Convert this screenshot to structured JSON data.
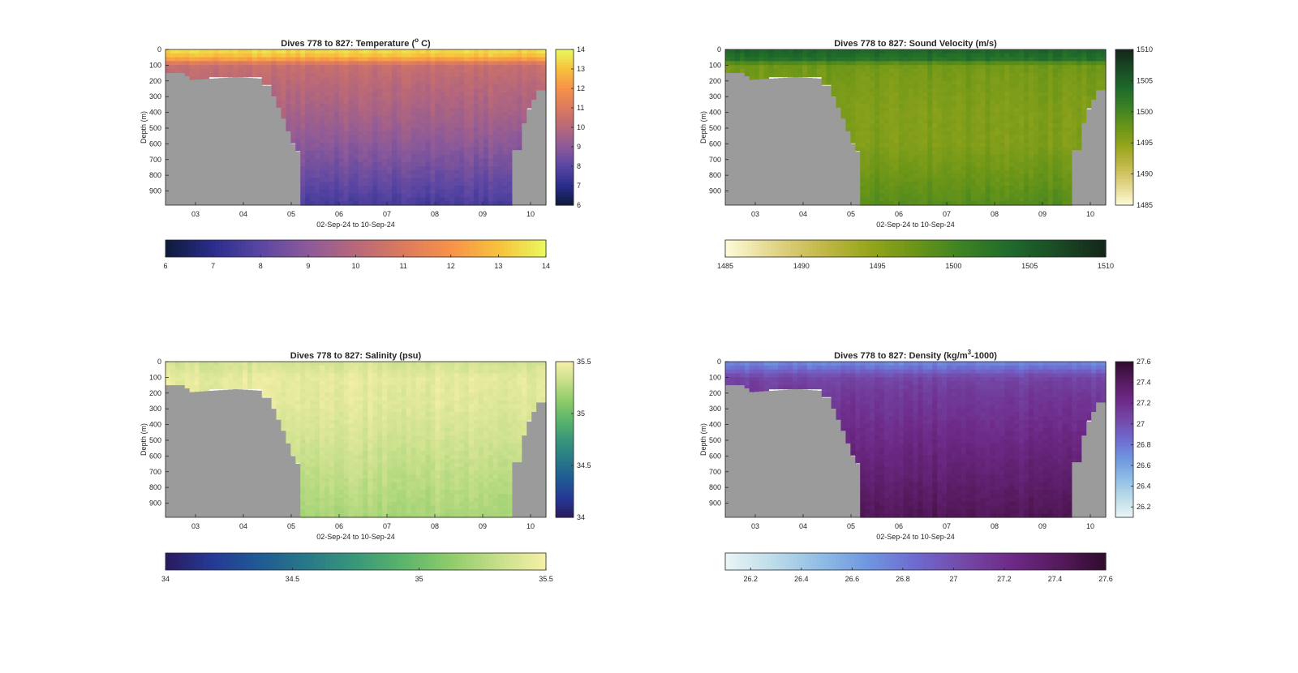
{
  "figure": {
    "background": "#ffffff",
    "land_color": "#9b9b9b"
  },
  "chart_data": [
    {
      "id": "temperature",
      "type": "heatmap",
      "title_main": "Dives 778 to 827: Temperature (",
      "title_sup": "o",
      "title_end": " C)",
      "xlabel": "02-Sep-24 to 10-Sep-24",
      "ylabel": "Depth (m)",
      "x_ticks": [
        "03",
        "04",
        "05",
        "06",
        "07",
        "08",
        "09",
        "10"
      ],
      "x_range_days": [
        "02-Sep-24 09:00",
        "10-Sep-24 07:00"
      ],
      "y_ticks": [
        "0",
        "100",
        "200",
        "300",
        "400",
        "500",
        "600",
        "700",
        "800",
        "900"
      ],
      "ylim": [
        0,
        990
      ],
      "colorbar": {
        "min": 6,
        "max": 14,
        "ticks": [
          "6",
          "7",
          "8",
          "9",
          "10",
          "11",
          "12",
          "13",
          "14"
        ],
        "h_ticks": [
          "6",
          "7",
          "8",
          "9",
          "10",
          "11",
          "12",
          "13",
          "14"
        ],
        "colors": [
          "#0d1a3a",
          "#2a2d8c",
          "#5a46a3",
          "#8d5a99",
          "#b86879",
          "#dc7a5e",
          "#f7924a",
          "#f7c13c",
          "#e9f95e"
        ]
      },
      "profile": [
        [
          0,
          13.6
        ],
        [
          50,
          12.8
        ],
        [
          100,
          10.4
        ],
        [
          200,
          10.1
        ],
        [
          400,
          9.6
        ],
        [
          600,
          9.0
        ],
        [
          800,
          8.3
        ],
        [
          990,
          7.6
        ]
      ]
    },
    {
      "id": "sound_velocity",
      "type": "heatmap",
      "title_main": "Dives 778 to 827: Sound Velocity (m/s)",
      "title_sup": "",
      "title_end": "",
      "xlabel": "02-Sep-24 to 10-Sep-24",
      "ylabel": "Depth (m)",
      "x_ticks": [
        "03",
        "04",
        "05",
        "06",
        "07",
        "08",
        "09",
        "10"
      ],
      "x_range_days": [
        "02-Sep-24 09:00",
        "10-Sep-24 07:00"
      ],
      "y_ticks": [
        "0",
        "100",
        "200",
        "300",
        "400",
        "500",
        "600",
        "700",
        "800",
        "900"
      ],
      "ylim": [
        0,
        990
      ],
      "colorbar": {
        "min": 1485,
        "max": 1510,
        "ticks": [
          "1485",
          "1490",
          "1495",
          "1500",
          "1505",
          "1510"
        ],
        "h_ticks": [
          "1485",
          "1490",
          "1495",
          "1500",
          "1505",
          "1510"
        ],
        "colors": [
          "#fdfbd9",
          "#e3d68a",
          "#c3b94a",
          "#97a61c",
          "#6a9518",
          "#3c8223",
          "#1f6a2c",
          "#1a4a24",
          "#13261a"
        ]
      },
      "profile": [
        [
          0,
          1504.5
        ],
        [
          60,
          1503
        ],
        [
          100,
          1497
        ],
        [
          200,
          1496.5
        ],
        [
          400,
          1496
        ],
        [
          600,
          1496
        ],
        [
          800,
          1497.5
        ],
        [
          990,
          1499
        ]
      ]
    },
    {
      "id": "salinity",
      "type": "heatmap",
      "title_main": "Dives 778 to 827: Salinity (psu)",
      "title_sup": "",
      "title_end": "",
      "xlabel": "02-Sep-24 to 10-Sep-24",
      "ylabel": "Depth (m)",
      "x_ticks": [
        "03",
        "04",
        "05",
        "06",
        "07",
        "08",
        "09",
        "10"
      ],
      "x_range_days": [
        "02-Sep-24 09:00",
        "10-Sep-24 07:00"
      ],
      "y_ticks": [
        "0",
        "100",
        "200",
        "300",
        "400",
        "500",
        "600",
        "700",
        "800",
        "900"
      ],
      "ylim": [
        0,
        990
      ],
      "colorbar": {
        "min": 34,
        "max": 35.5,
        "ticks": [
          "34",
          "34.5",
          "35",
          "35.5"
        ],
        "h_ticks": [
          "34",
          "34.5",
          "35",
          "35.5"
        ],
        "colors": [
          "#2a1a5e",
          "#253a96",
          "#1f5b94",
          "#287a87",
          "#39977a",
          "#5bb56a",
          "#8fcc6a",
          "#c6df8a",
          "#f7f0a8"
        ]
      },
      "profile": [
        [
          0,
          35.36
        ],
        [
          60,
          35.4
        ],
        [
          100,
          35.44
        ],
        [
          300,
          35.41
        ],
        [
          500,
          35.36
        ],
        [
          700,
          35.3
        ],
        [
          990,
          35.22
        ]
      ]
    },
    {
      "id": "density",
      "type": "heatmap",
      "title_main": "Dives 778 to 827: Density (kg/m",
      "title_sup": "3",
      "title_end": "-1000)",
      "xlabel": "02-Sep-24 to 10-Sep-24",
      "ylabel": "Depth (m)",
      "x_ticks": [
        "03",
        "04",
        "05",
        "06",
        "07",
        "08",
        "09",
        "10"
      ],
      "x_range_days": [
        "02-Sep-24 09:00",
        "10-Sep-24 07:00"
      ],
      "y_ticks": [
        "0",
        "100",
        "200",
        "300",
        "400",
        "500",
        "600",
        "700",
        "800",
        "900"
      ],
      "ylim": [
        0,
        990
      ],
      "colorbar": {
        "min": 26.1,
        "max": 27.6,
        "ticks": [
          "26.2",
          "26.4",
          "26.6",
          "26.8",
          "27",
          "27.2",
          "27.4",
          "27.6"
        ],
        "h_ticks": [
          "26.2",
          "26.4",
          "26.6",
          "26.8",
          "27",
          "27.2",
          "27.4",
          "27.6"
        ],
        "colors": [
          "#eaf5f6",
          "#bddcea",
          "#8fbde5",
          "#6f97e0",
          "#6f6ad0",
          "#7449a8",
          "#6e2a88",
          "#561a5e",
          "#2f0c2c"
        ]
      },
      "profile": [
        [
          0,
          26.7
        ],
        [
          50,
          26.85
        ],
        [
          100,
          27.05
        ],
        [
          200,
          27.12
        ],
        [
          400,
          27.2
        ],
        [
          600,
          27.28
        ],
        [
          800,
          27.36
        ],
        [
          990,
          27.44
        ]
      ]
    }
  ]
}
